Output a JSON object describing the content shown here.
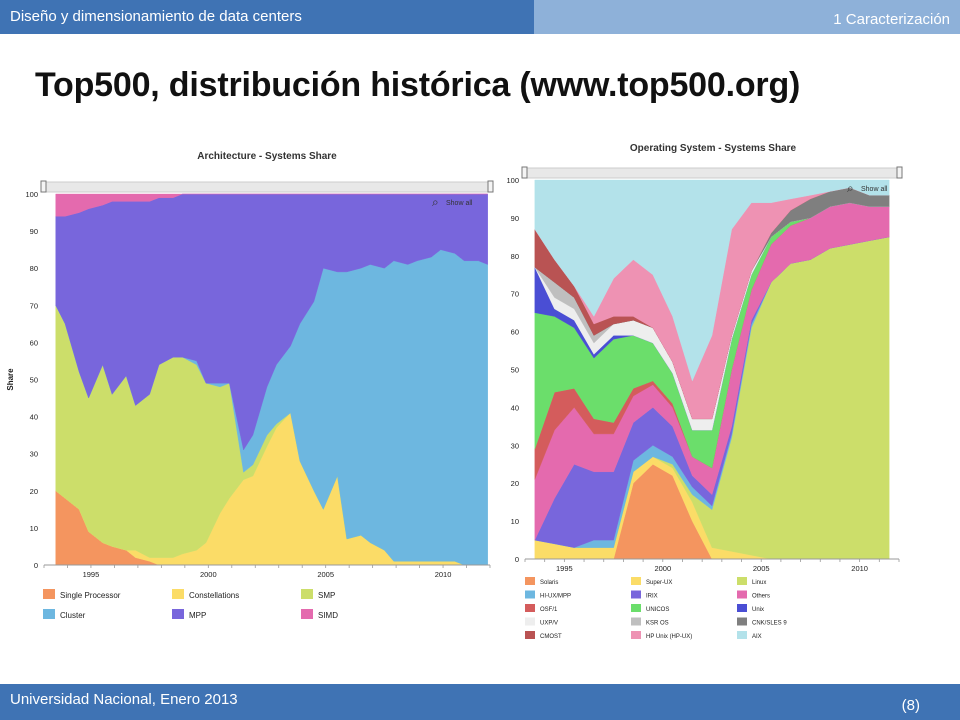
{
  "header": {
    "left": "Diseño y dimensionamiento de data centers",
    "right": "1 Caracterización"
  },
  "title": "Top500, distribución histórica (www.top500.org)",
  "footer": {
    "left": "Universidad Nacional, Enero 2013",
    "right": "(8)"
  },
  "chart_data": [
    {
      "type": "area",
      "title": "Architecture - Systems Share",
      "ylabel": "Share",
      "xlabel": "",
      "stacked": true,
      "percent": true,
      "ylim": [
        0,
        100
      ],
      "xlim": [
        1993,
        2012
      ],
      "xticks": [
        "1995",
        "2000",
        "2005",
        "2010"
      ],
      "yticks": [
        "0",
        "10",
        "20",
        "30",
        "40",
        "50",
        "60",
        "70",
        "80",
        "90",
        "100"
      ],
      "zoom_label": "Show all",
      "legend_position": "bottom",
      "x": [
        1993.5,
        1993.9,
        1994.5,
        1994.9,
        1995.5,
        1995.9,
        1996.5,
        1996.9,
        1997.5,
        1997.9,
        1998.5,
        1998.9,
        1999.5,
        1999.9,
        2000.5,
        2000.9,
        2001.5,
        2001.9,
        2002.5,
        2002.9,
        2003.5,
        2003.9,
        2004.5,
        2004.9,
        2005.5,
        2005.9,
        2006.5,
        2006.9,
        2007.5,
        2007.9,
        2008.5,
        2008.9,
        2009.5,
        2009.9,
        2010.5,
        2010.9,
        2011.5,
        2011.9
      ],
      "series": [
        {
          "name": "Single Processor",
          "color": "#f4955f",
          "values": [
            20,
            18,
            15,
            9,
            6,
            5,
            4,
            2,
            1,
            0,
            0,
            0,
            0,
            0,
            0,
            0,
            0,
            0,
            0,
            0,
            0,
            0,
            0,
            0,
            0,
            0,
            0,
            0,
            0,
            0,
            0,
            0,
            0,
            0,
            0,
            0,
            0,
            0
          ]
        },
        {
          "name": "Constellations",
          "color": "#fbdc67",
          "values": [
            0,
            0,
            0,
            0,
            0,
            0,
            0,
            2,
            1,
            2,
            2,
            3,
            4,
            6,
            14,
            18,
            23,
            24,
            32,
            37,
            41,
            28,
            20,
            15,
            24,
            7,
            8,
            6,
            4,
            1,
            1,
            1,
            1,
            1,
            1,
            0,
            0,
            0
          ]
        },
        {
          "name": "SMP",
          "color": "#ccde6a",
          "values": [
            50,
            47,
            37,
            36,
            48,
            41,
            47,
            39,
            44,
            52,
            54,
            53,
            50,
            43,
            34,
            31,
            2,
            3,
            3,
            1,
            0,
            0,
            0,
            0,
            0,
            0,
            0,
            0,
            0,
            0,
            0,
            0,
            0,
            0,
            0,
            0,
            0,
            0
          ]
        },
        {
          "name": "Cluster",
          "color": "#6db7e0",
          "values": [
            0,
            0,
            0,
            0,
            0,
            0,
            0,
            0,
            0,
            0,
            0,
            0,
            1,
            0,
            1,
            0,
            6,
            8,
            13,
            16,
            18,
            37,
            51,
            65,
            55,
            72,
            72,
            75,
            76,
            81,
            80,
            81,
            82,
            84,
            83,
            82,
            82,
            81
          ]
        },
        {
          "name": "MPP",
          "color": "#7866dc",
          "values": [
            24,
            29,
            43,
            51,
            43,
            52,
            47,
            55,
            52,
            45,
            43,
            44,
            45,
            51,
            51,
            51,
            69,
            65,
            52,
            46,
            41,
            35,
            29,
            20,
            21,
            21,
            20,
            19,
            20,
            18,
            19,
            18,
            17,
            15,
            16,
            18,
            18,
            19
          ]
        },
        {
          "name": "SIMD",
          "color": "#e46aae",
          "values": [
            6,
            6,
            5,
            4,
            3,
            2,
            2,
            2,
            2,
            1,
            1,
            0,
            0,
            0,
            0,
            0,
            0,
            0,
            0,
            0,
            0,
            0,
            0,
            0,
            0,
            0,
            0,
            0,
            0,
            0,
            0,
            0,
            0,
            0,
            0,
            0,
            0,
            0
          ]
        }
      ]
    },
    {
      "type": "area",
      "title": "Operating System - Systems Share",
      "ylabel": "",
      "xlabel": "",
      "stacked": true,
      "percent": true,
      "ylim": [
        0,
        100
      ],
      "xlim": [
        1993,
        2012
      ],
      "xticks": [
        "1995",
        "2000",
        "2005",
        "2010"
      ],
      "yticks": [
        "0",
        "10",
        "20",
        "30",
        "40",
        "50",
        "60",
        "70",
        "80",
        "90",
        "100"
      ],
      "zoom_label": "Show all",
      "legend_position": "bottom",
      "x": [
        1993.5,
        1994.5,
        1995.5,
        1996.5,
        1997.5,
        1998.5,
        1999.5,
        2000.5,
        2001.5,
        2002.5,
        2003.5,
        2004.5,
        2005.5,
        2006.5,
        2007.5,
        2008.5,
        2009.5,
        2010.5,
        2011.5
      ],
      "series": [
        {
          "name": "Solaris",
          "color": "#f4955f",
          "values": [
            0,
            0,
            0,
            0,
            0,
            20,
            25,
            22,
            10,
            0,
            0,
            0,
            0,
            0,
            0,
            0,
            0,
            0,
            0
          ]
        },
        {
          "name": "Super-UX",
          "color": "#fbdc67",
          "values": [
            5,
            4,
            3,
            3,
            3,
            3,
            2,
            2,
            5,
            3,
            2,
            1,
            0,
            0,
            0,
            0,
            0,
            0,
            0
          ]
        },
        {
          "name": "Linux",
          "color": "#ccde6a",
          "values": [
            0,
            0,
            0,
            0,
            0,
            0,
            0,
            1,
            2,
            10,
            30,
            60,
            73,
            78,
            79,
            82,
            83,
            84,
            85
          ]
        },
        {
          "name": "HI-UX/MPP",
          "color": "#6db7e0",
          "values": [
            0,
            0,
            0,
            2,
            2,
            3,
            3,
            2,
            2,
            1,
            1,
            1,
            0,
            0,
            0,
            0,
            0,
            0,
            0
          ]
        },
        {
          "name": "IRIX",
          "color": "#7866dc",
          "values": [
            0,
            12,
            22,
            18,
            18,
            10,
            10,
            8,
            3,
            3,
            2,
            1,
            0,
            0,
            0,
            0,
            0,
            0,
            0
          ]
        },
        {
          "name": "Others",
          "color": "#e46aae",
          "values": [
            16,
            18,
            15,
            10,
            10,
            7,
            6,
            5,
            5,
            7,
            15,
            8,
            10,
            10,
            11,
            11,
            11,
            9,
            8
          ]
        },
        {
          "name": "OSF/1",
          "color": "#d45c5c",
          "values": [
            8,
            10,
            5,
            4,
            3,
            2,
            1,
            1,
            0,
            0,
            0,
            0,
            0,
            0,
            0,
            0,
            0,
            0,
            0
          ]
        },
        {
          "name": "UNICOS",
          "color": "#6bde6b",
          "values": [
            36,
            20,
            16,
            16,
            22,
            14,
            10,
            8,
            7,
            10,
            8,
            4,
            2,
            1,
            0,
            0,
            0,
            0,
            0
          ]
        },
        {
          "name": "Unix",
          "color": "#4a4ed4",
          "values": [
            12,
            2,
            2,
            1,
            1,
            0,
            0,
            0,
            0,
            0,
            0,
            0,
            0,
            0,
            0,
            0,
            0,
            0,
            0
          ]
        },
        {
          "name": "UXP/V",
          "color": "#eeeeee",
          "values": [
            0,
            3,
            3,
            3,
            3,
            4,
            4,
            3,
            3,
            3,
            1,
            1,
            0,
            0,
            0,
            0,
            0,
            0,
            0
          ]
        },
        {
          "name": "KSR OS",
          "color": "#bfbfbf",
          "values": [
            0,
            4,
            3,
            2,
            0,
            0,
            0,
            0,
            0,
            0,
            0,
            0,
            0,
            0,
            0,
            0,
            0,
            0,
            0
          ]
        },
        {
          "name": "CNK/SLES 9",
          "color": "#7f7f7f",
          "values": [
            0,
            0,
            0,
            0,
            0,
            0,
            0,
            0,
            0,
            0,
            0,
            0,
            1,
            3,
            5,
            4,
            4,
            3,
            3
          ]
        },
        {
          "name": "CMOST",
          "color": "#b95353",
          "values": [
            10,
            6,
            3,
            3,
            2,
            1,
            0,
            0,
            0,
            0,
            0,
            0,
            0,
            0,
            0,
            0,
            0,
            0,
            0
          ]
        },
        {
          "name": "HP Unix (HP-UX)",
          "color": "#ee92b3",
          "values": [
            0,
            0,
            0,
            2,
            10,
            15,
            14,
            12,
            10,
            22,
            28,
            18,
            8,
            3,
            1,
            0,
            0,
            0,
            0
          ]
        },
        {
          "name": "AIX",
          "color": "#b3e2ea",
          "values": [
            13,
            21,
            28,
            36,
            26,
            21,
            25,
            36,
            53,
            41,
            13,
            6,
            6,
            5,
            4,
            3,
            2,
            4,
            4
          ]
        }
      ]
    }
  ]
}
